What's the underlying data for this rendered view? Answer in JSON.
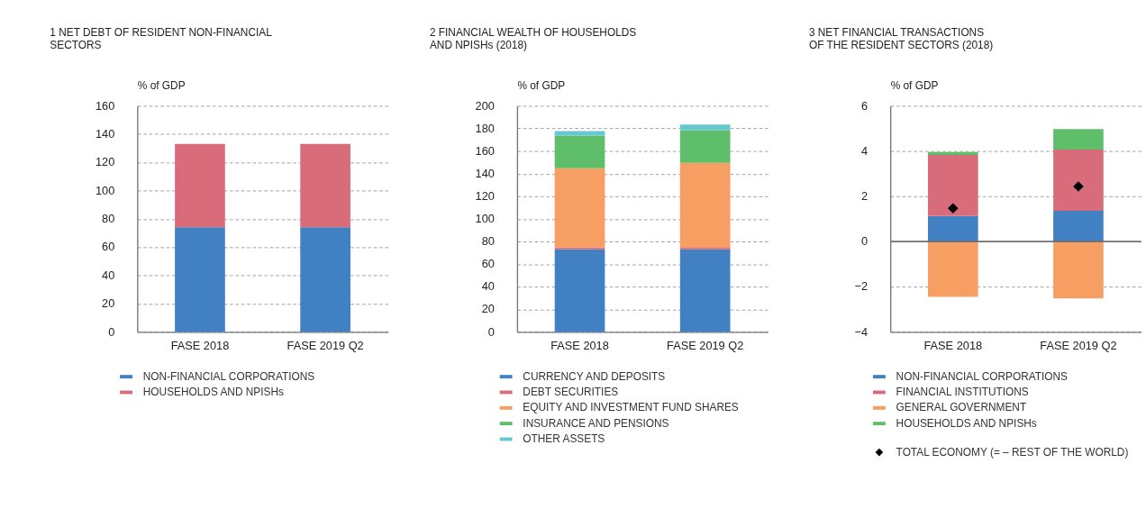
{
  "chart_data": [
    {
      "type": "bar",
      "title": "1  NET DEBT OF RESIDENT NON-FINANCIAL\nSECTORS",
      "ylabel": "% of GDP",
      "categories": [
        "FASE 2018",
        "FASE 2019 Q2"
      ],
      "stacked": true,
      "ylim": [
        0,
        160
      ],
      "yticks": [
        0,
        20,
        40,
        60,
        80,
        100,
        120,
        140,
        160
      ],
      "grid": "y",
      "legend": "bottom",
      "series": [
        {
          "name": "NON-FINANCIAL CORPORATIONS",
          "color": "#4180c3",
          "values": [
            74,
            74
          ]
        },
        {
          "name": "HOUSEHOLDS AND NPISHs",
          "color": "#d86c7a",
          "values": [
            59,
            59
          ]
        }
      ]
    },
    {
      "type": "bar",
      "title": "2  FINANCIAL WEALTH OF HOUSEHOLDS\nAND NPISHs (2018)",
      "ylabel": "% of GDP",
      "categories": [
        "FASE 2018",
        "FASE 2019 Q2"
      ],
      "stacked": true,
      "ylim": [
        0,
        200
      ],
      "yticks": [
        0,
        20,
        40,
        60,
        80,
        100,
        120,
        140,
        160,
        180,
        200
      ],
      "grid": "y",
      "legend": "bottom",
      "series": [
        {
          "name": "CURRENCY AND DEPOSITS",
          "color": "#4180c3",
          "values": [
            73,
            73
          ]
        },
        {
          "name": "DEBT SECURITIES",
          "color": "#d86c7a",
          "values": [
            1.7,
            1.5
          ]
        },
        {
          "name": "EQUITY AND INVESTMENT FUND SHARES",
          "color": "#f79e62",
          "values": [
            70,
            75
          ]
        },
        {
          "name": "INSURANCE AND PENSIONS",
          "color": "#5fbe6a",
          "values": [
            29,
            29
          ]
        },
        {
          "name": "OTHER ASSETS",
          "color": "#66c8d0",
          "values": [
            4,
            5
          ]
        }
      ]
    },
    {
      "type": "bar",
      "title": "3  NET FINANCIAL TRANSACTIONS\nOF THE RESIDENT SECTORS (2018)",
      "ylabel": "% of GDP",
      "categories": [
        "FASE 2018",
        "FASE 2019 Q2"
      ],
      "stacked": true,
      "ylim": [
        -4,
        6
      ],
      "yticks": [
        -4,
        -2,
        0,
        2,
        4,
        6
      ],
      "grid": "y",
      "legend": "bottom",
      "ref_lines": [
        {
          "axis": "y",
          "value": 0,
          "color": "#707070"
        }
      ],
      "series": [
        {
          "name": "NON-FINANCIAL CORPORATIONS",
          "color": "#4180c3",
          "values": [
            1.13,
            1.36
          ]
        },
        {
          "name": "FINANCIAL INSTITUTIONS",
          "color": "#d86c7a",
          "values": [
            2.7,
            2.71
          ]
        },
        {
          "name": "GENERAL GOVERNMENT",
          "color": "#f79e62",
          "values": [
            -2.45,
            -2.52
          ]
        },
        {
          "name": "HOUSEHOLDS AND NPISHs",
          "color": "#5fbe6a",
          "values": [
            0.13,
            0.9
          ]
        },
        {
          "name": "TOTAL ECONOMY (= – REST OF THE WORLD)",
          "type": "scatter",
          "marker": "diamond",
          "color": "#000000",
          "values": [
            1.47,
            2.43
          ]
        }
      ]
    }
  ]
}
